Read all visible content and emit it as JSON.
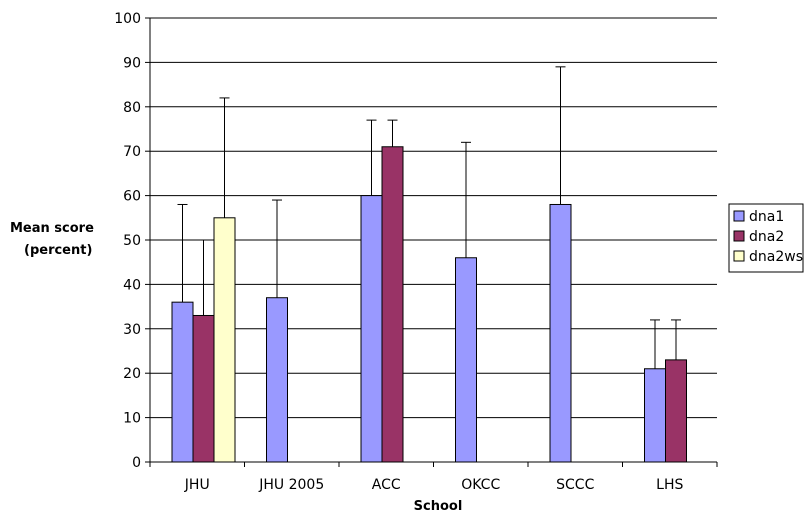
{
  "chart_data": {
    "type": "bar",
    "title": "",
    "xlabel": "School",
    "ylabel_lines": [
      "Mean score",
      "(percent)"
    ],
    "ylim": [
      0,
      100
    ],
    "yticks": [
      0,
      10,
      20,
      30,
      40,
      50,
      60,
      70,
      80,
      90,
      100
    ],
    "grid": true,
    "legend_position": "right",
    "categories": [
      "JHU",
      "JHU 2005",
      "ACC",
      "OKCC",
      "SCCC",
      "LHS"
    ],
    "series": [
      {
        "name": "dna1",
        "color": "#9999ff",
        "values": [
          36,
          37,
          60,
          46,
          58,
          21
        ],
        "error_upper": [
          58,
          59,
          77,
          72,
          89,
          32
        ]
      },
      {
        "name": "dna2",
        "color": "#993366",
        "values": [
          33,
          null,
          71,
          null,
          null,
          23
        ],
        "error_upper": [
          50,
          null,
          77,
          null,
          null,
          32
        ]
      },
      {
        "name": "dna2ws",
        "color": "#ffffcc",
        "values": [
          55,
          null,
          null,
          null,
          null,
          null
        ],
        "error_upper": [
          82,
          null,
          null,
          null,
          null,
          null
        ]
      }
    ]
  }
}
